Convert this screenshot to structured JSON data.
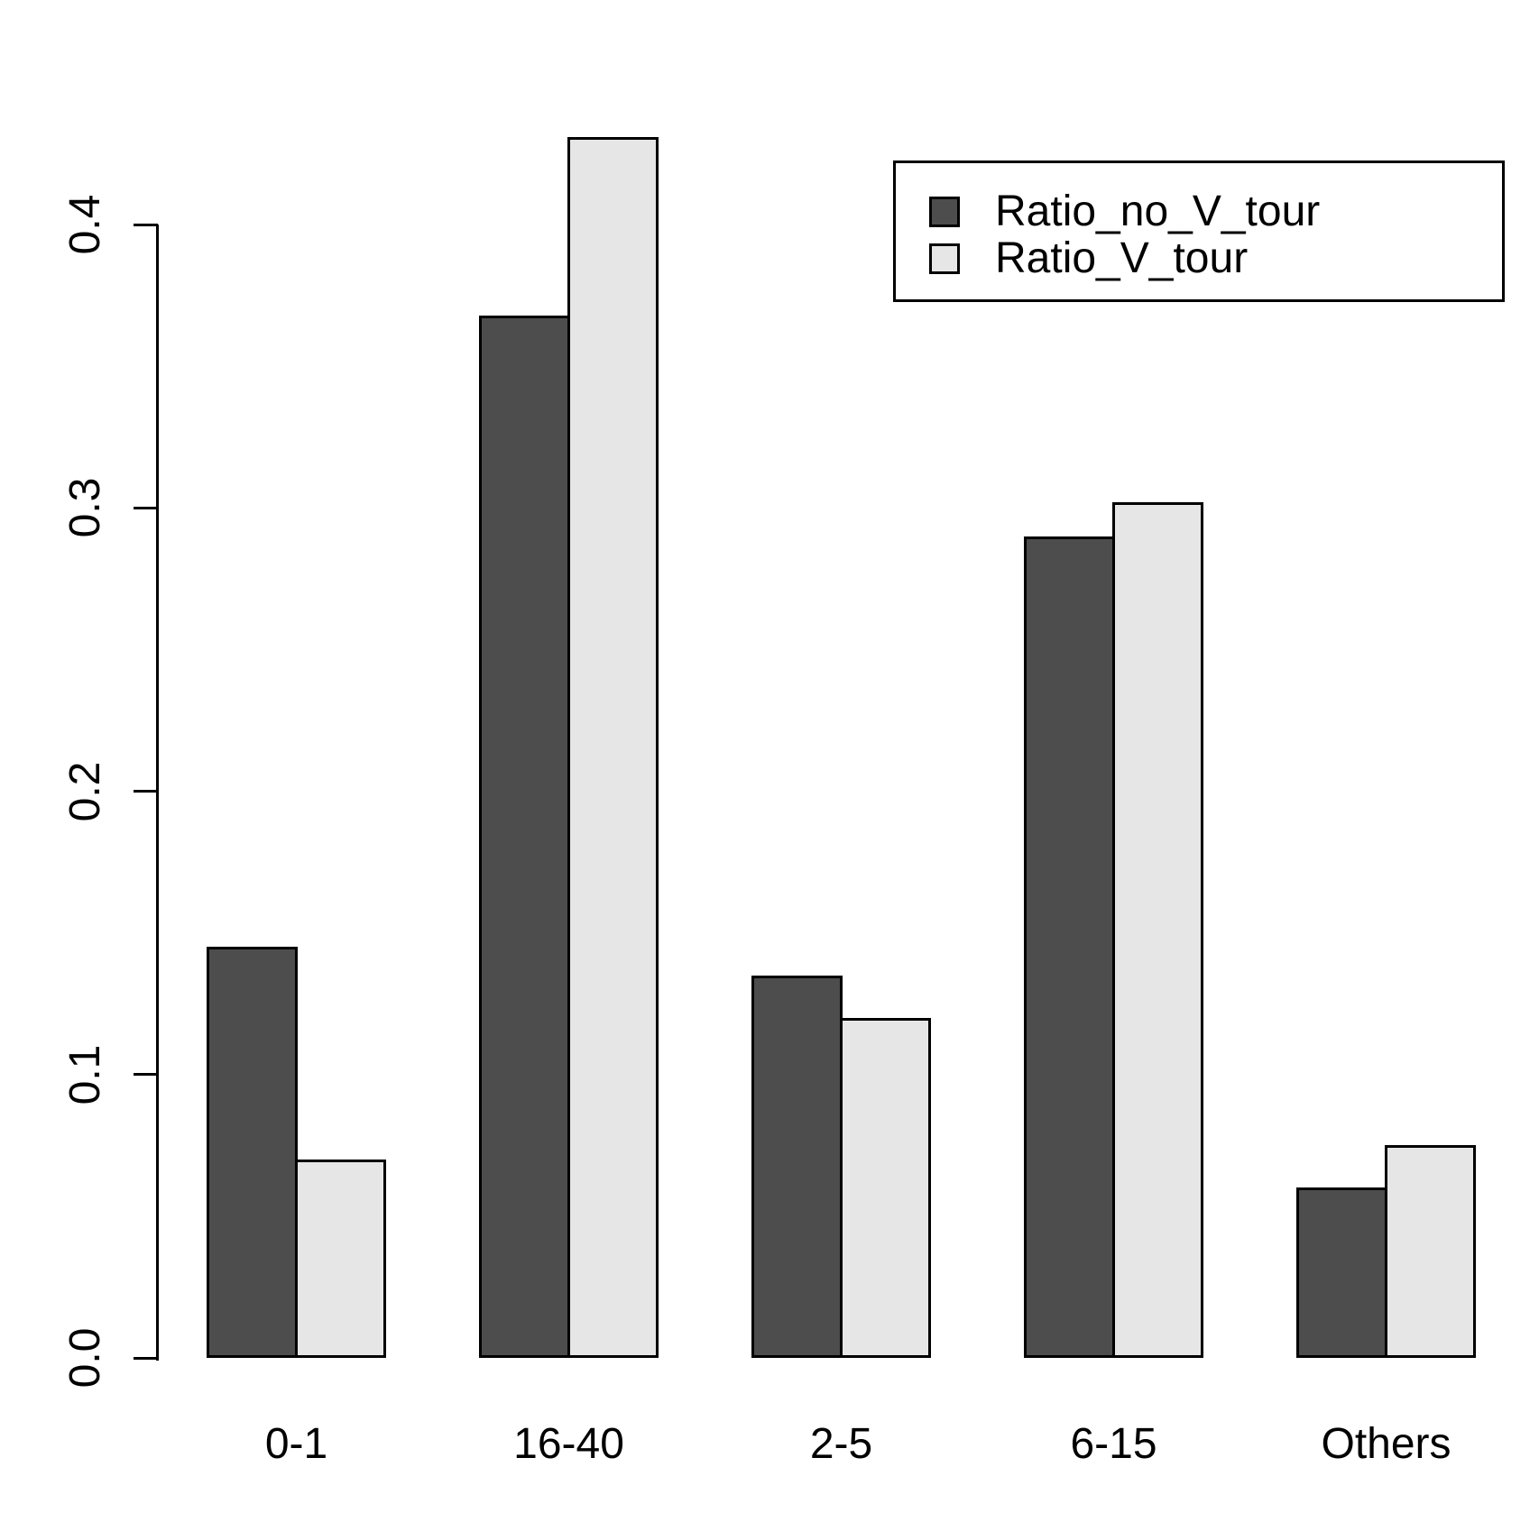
{
  "chart_data": {
    "type": "bar",
    "title": "",
    "xlabel": "",
    "ylabel": "",
    "categories": [
      "0-1",
      "16-40",
      "2-5",
      "6-15",
      "Others"
    ],
    "series": [
      {
        "name": "Ratio_no_V_tour",
        "color": "#4D4D4D",
        "values": [
          0.145,
          0.368,
          0.135,
          0.29,
          0.06
        ]
      },
      {
        "name": "Ratio_V_tour",
        "color": "#E6E6E6",
        "values": [
          0.07,
          0.431,
          0.12,
          0.302,
          0.075
        ]
      }
    ],
    "ylim": [
      0,
      0.4
    ],
    "yticks": [
      "0.0",
      "0.1",
      "0.2",
      "0.3",
      "0.4"
    ],
    "grid": false,
    "legend_position": "top-right",
    "bar_border_color": "#000000",
    "background_color": "#ffffff"
  }
}
